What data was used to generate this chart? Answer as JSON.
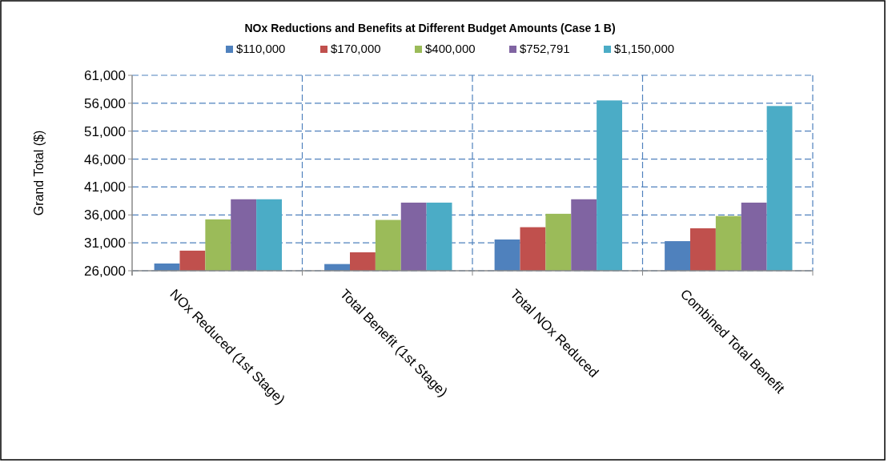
{
  "chart_data": {
    "type": "bar",
    "title": "NOx Reductions and Benefits at Different Budget Amounts (Case 1 B)",
    "ylabel": "Grand Total ($)",
    "categories": [
      "NOx Reduced (1st Stage)",
      "Total Benefit (1st Stage)",
      "Total NOx Reduced",
      "Combined Total Benefit"
    ],
    "series": [
      {
        "name": "$110,000",
        "color": "#4f81bd",
        "values": [
          27300,
          27200,
          31600,
          31300
        ]
      },
      {
        "name": "$170,000",
        "color": "#c0504d",
        "values": [
          29600,
          29300,
          33800,
          33600
        ]
      },
      {
        "name": "$400,000",
        "color": "#9bbb59",
        "values": [
          35200,
          35100,
          36200,
          35800
        ]
      },
      {
        "name": "$752,791",
        "color": "#8064a2",
        "values": [
          38800,
          38200,
          38800,
          38200
        ]
      },
      {
        "name": "$1,150,000",
        "color": "#4bacc6",
        "values": [
          38800,
          38200,
          56500,
          55500
        ]
      }
    ],
    "ylim": [
      26000,
      61000
    ],
    "yticks": [
      {
        "value": 26000,
        "label": "26,000"
      },
      {
        "value": 31000,
        "label": "31,000"
      },
      {
        "value": 36000,
        "label": "36,000"
      },
      {
        "value": 41000,
        "label": "41,000"
      },
      {
        "value": 46000,
        "label": "46,000"
      },
      {
        "value": 51000,
        "label": "51,000"
      },
      {
        "value": 56000,
        "label": "56,000"
      },
      {
        "value": 61000,
        "label": "61,000"
      }
    ],
    "grid": true,
    "legend": "top"
  }
}
